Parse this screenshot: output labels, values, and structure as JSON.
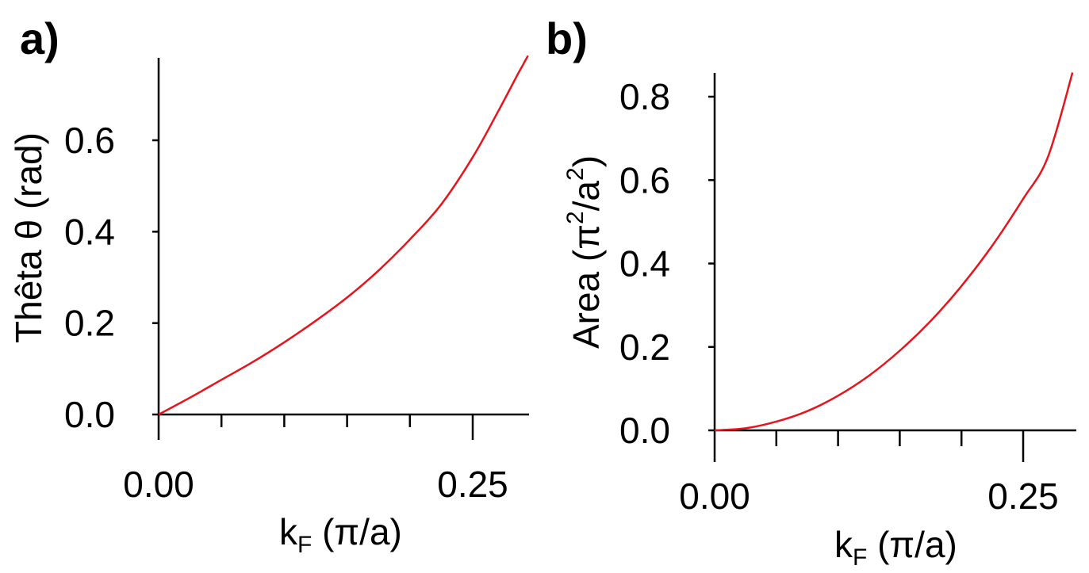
{
  "chart_data": [
    {
      "type": "line",
      "panel_label": "a)",
      "xlabel": {
        "main": "k",
        "sub": "F",
        "unit": " (π/a)"
      },
      "ylabel": "Thêta θ (rad)",
      "xlim": [
        0.0,
        0.295
      ],
      "ylim": [
        0.0,
        0.78
      ],
      "x_major_ticks": [
        0.0,
        0.25
      ],
      "x_major_tick_labels": [
        "0.00",
        "0.25"
      ],
      "x_minor_ticks": [
        0.05,
        0.1,
        0.15,
        0.2
      ],
      "y_ticks": [
        0.0,
        0.2,
        0.4,
        0.6
      ],
      "y_tick_labels": [
        "0.0",
        "0.2",
        "0.4",
        "0.6"
      ],
      "series": [
        {
          "name": "theta",
          "color": "#e8141c",
          "x": [
            0.0,
            0.025,
            0.05,
            0.075,
            0.1,
            0.125,
            0.15,
            0.175,
            0.2,
            0.225,
            0.25,
            0.27,
            0.285,
            0.29,
            0.294
          ],
          "y": [
            0.0,
            0.037,
            0.076,
            0.115,
            0.158,
            0.205,
            0.256,
            0.315,
            0.383,
            0.46,
            0.563,
            0.662,
            0.74,
            0.765,
            0.785
          ]
        }
      ]
    },
    {
      "type": "line",
      "panel_label": "b)",
      "xlabel": {
        "main": "k",
        "sub": "F",
        "unit": " (π/a)"
      },
      "ylabel": {
        "text": "Area (π",
        "sup1": "2",
        "mid": "/a",
        "sup2": "2",
        "end": ")"
      },
      "xlim": [
        0.0,
        0.29
      ],
      "ylim": [
        0.0,
        0.86
      ],
      "x_major_ticks": [
        0.0,
        0.25
      ],
      "x_major_tick_labels": [
        "0.00",
        "0.25"
      ],
      "x_minor_ticks": [
        0.05,
        0.1,
        0.15,
        0.2
      ],
      "y_ticks": [
        0.0,
        0.2,
        0.4,
        0.6,
        0.8
      ],
      "y_tick_labels": [
        "0.0",
        "0.2",
        "0.4",
        "0.6",
        "0.8"
      ],
      "series": [
        {
          "name": "area",
          "color": "#e8141c",
          "x": [
            0.0,
            0.025,
            0.05,
            0.075,
            0.1,
            0.125,
            0.15,
            0.175,
            0.2,
            0.225,
            0.25,
            0.27,
            0.29
          ],
          "y": [
            0.0,
            0.005,
            0.021,
            0.046,
            0.083,
            0.131,
            0.191,
            0.262,
            0.346,
            0.443,
            0.555,
            0.655,
            0.858
          ]
        }
      ]
    }
  ]
}
